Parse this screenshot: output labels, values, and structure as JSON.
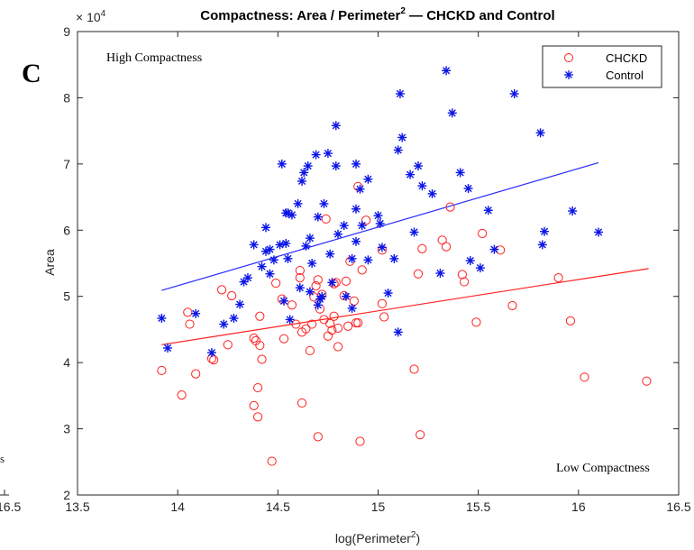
{
  "panel_label": "C",
  "left_fragment": {
    "text": "s",
    "tick": "16.5"
  },
  "chart_data": {
    "type": "scatter",
    "title_main": "Compactness: Area / Perimeter",
    "title_sup": "2",
    "title_tail": " — CHCKD and Control",
    "xlabel_main": "log(Perimeter",
    "xlabel_sup": "2",
    "xlabel_tail": ")",
    "ylabel": "Area",
    "y_exponent_label": "× 10",
    "y_exponent_sup": "4",
    "xlim": [
      13.5,
      16.5
    ],
    "ylim": [
      2,
      9
    ],
    "x_ticks": [
      "13.5",
      "14",
      "14.5",
      "15",
      "15.5",
      "16",
      "16.5"
    ],
    "y_ticks": [
      "2",
      "3",
      "4",
      "5",
      "6",
      "7",
      "8",
      "9"
    ],
    "annotations": {
      "high": "High Compactness",
      "low": "Low Compactness"
    },
    "legend_position": "top-right",
    "grid": false,
    "series": [
      {
        "name": "CHCKD",
        "marker": "circle",
        "color": "#ff2020",
        "points": [
          [
            13.92,
            3.88
          ],
          [
            14.02,
            3.51
          ],
          [
            14.05,
            4.76
          ],
          [
            14.06,
            4.58
          ],
          [
            14.09,
            3.83
          ],
          [
            14.17,
            4.06
          ],
          [
            14.18,
            4.04
          ],
          [
            14.22,
            5.1
          ],
          [
            14.25,
            4.27
          ],
          [
            14.27,
            5.01
          ],
          [
            14.38,
            3.35
          ],
          [
            14.38,
            4.37
          ],
          [
            14.39,
            4.33
          ],
          [
            14.4,
            3.62
          ],
          [
            14.4,
            3.18
          ],
          [
            14.41,
            4.7
          ],
          [
            14.41,
            4.26
          ],
          [
            14.42,
            4.05
          ],
          [
            14.47,
            2.51
          ],
          [
            14.49,
            5.2
          ],
          [
            14.52,
            4.96
          ],
          [
            14.53,
            4.36
          ],
          [
            14.57,
            4.87
          ],
          [
            14.59,
            4.58
          ],
          [
            14.61,
            5.28
          ],
          [
            14.61,
            5.39
          ],
          [
            14.62,
            4.46
          ],
          [
            14.62,
            3.39
          ],
          [
            14.64,
            4.51
          ],
          [
            14.66,
            4.18
          ],
          [
            14.67,
            4.58
          ],
          [
            14.68,
            4.99
          ],
          [
            14.69,
            5.16
          ],
          [
            14.7,
            5.25
          ],
          [
            14.7,
            2.88
          ],
          [
            14.71,
            4.81
          ],
          [
            14.72,
            5.03
          ],
          [
            14.73,
            4.65
          ],
          [
            14.74,
            6.17
          ],
          [
            14.75,
            4.4
          ],
          [
            14.76,
            4.59
          ],
          [
            14.77,
            4.49
          ],
          [
            14.78,
            5.19
          ],
          [
            14.78,
            4.7
          ],
          [
            14.79,
            5.21
          ],
          [
            14.8,
            4.52
          ],
          [
            14.8,
            4.24
          ],
          [
            14.83,
            5.01
          ],
          [
            14.84,
            5.23
          ],
          [
            14.85,
            4.55
          ],
          [
            14.86,
            5.53
          ],
          [
            14.88,
            4.93
          ],
          [
            14.89,
            4.6
          ],
          [
            14.9,
            6.66
          ],
          [
            14.9,
            4.6
          ],
          [
            14.91,
            2.81
          ],
          [
            14.92,
            5.4
          ],
          [
            14.94,
            6.15
          ],
          [
            15.02,
            5.7
          ],
          [
            15.02,
            4.89
          ],
          [
            15.03,
            4.69
          ],
          [
            15.18,
            3.9
          ],
          [
            15.2,
            5.34
          ],
          [
            15.21,
            2.91
          ],
          [
            15.22,
            5.72
          ],
          [
            15.32,
            5.85
          ],
          [
            15.34,
            5.75
          ],
          [
            15.36,
            6.35
          ],
          [
            15.42,
            5.33
          ],
          [
            15.43,
            5.22
          ],
          [
            15.49,
            4.61
          ],
          [
            15.52,
            5.95
          ],
          [
            15.61,
            5.7
          ],
          [
            15.67,
            4.86
          ],
          [
            15.9,
            5.28
          ],
          [
            15.96,
            4.63
          ],
          [
            16.03,
            3.78
          ],
          [
            16.34,
            3.72
          ]
        ]
      },
      {
        "name": "Control",
        "marker": "asterisk",
        "color": "#0a14e6",
        "points": [
          [
            13.92,
            4.67
          ],
          [
            13.95,
            4.22
          ],
          [
            14.09,
            4.74
          ],
          [
            14.17,
            4.15
          ],
          [
            14.23,
            4.58
          ],
          [
            14.28,
            4.67
          ],
          [
            14.31,
            4.88
          ],
          [
            14.33,
            5.22
          ],
          [
            14.35,
            5.28
          ],
          [
            14.38,
            5.78
          ],
          [
            14.42,
            5.45
          ],
          [
            14.44,
            5.68
          ],
          [
            14.44,
            6.04
          ],
          [
            14.46,
            5.71
          ],
          [
            14.46,
            5.34
          ],
          [
            14.48,
            5.55
          ],
          [
            14.51,
            5.78
          ],
          [
            14.52,
            7.0
          ],
          [
            14.53,
            4.93
          ],
          [
            14.54,
            5.8
          ],
          [
            14.54,
            6.26
          ],
          [
            14.55,
            6.26
          ],
          [
            14.55,
            5.57
          ],
          [
            14.56,
            4.65
          ],
          [
            14.57,
            6.23
          ],
          [
            14.6,
            6.4
          ],
          [
            14.61,
            5.13
          ],
          [
            14.62,
            6.74
          ],
          [
            14.63,
            6.87
          ],
          [
            14.64,
            5.76
          ],
          [
            14.65,
            6.97
          ],
          [
            14.66,
            5.88
          ],
          [
            14.66,
            5.07
          ],
          [
            14.67,
            5.5
          ],
          [
            14.69,
            7.14
          ],
          [
            14.7,
            4.87
          ],
          [
            14.7,
            6.2
          ],
          [
            14.71,
            4.96
          ],
          [
            14.72,
            5.0
          ],
          [
            14.73,
            6.4
          ],
          [
            14.75,
            7.16
          ],
          [
            14.76,
            5.64
          ],
          [
            14.77,
            5.21
          ],
          [
            14.79,
            7.58
          ],
          [
            14.79,
            6.97
          ],
          [
            14.8,
            5.94
          ],
          [
            14.83,
            6.07
          ],
          [
            14.84,
            5.0
          ],
          [
            14.87,
            5.57
          ],
          [
            14.87,
            4.82
          ],
          [
            14.89,
            7.0
          ],
          [
            14.89,
            6.32
          ],
          [
            14.89,
            5.83
          ],
          [
            14.91,
            6.62
          ],
          [
            14.92,
            6.07
          ],
          [
            14.95,
            6.77
          ],
          [
            14.95,
            5.55
          ],
          [
            15.0,
            6.22
          ],
          [
            15.01,
            6.1
          ],
          [
            15.02,
            5.74
          ],
          [
            15.05,
            5.05
          ],
          [
            15.08,
            5.57
          ],
          [
            15.1,
            7.21
          ],
          [
            15.1,
            4.46
          ],
          [
            15.11,
            8.06
          ],
          [
            15.12,
            7.4
          ],
          [
            15.16,
            6.84
          ],
          [
            15.18,
            5.97
          ],
          [
            15.2,
            6.97
          ],
          [
            15.22,
            6.67
          ],
          [
            15.27,
            6.55
          ],
          [
            15.31,
            5.35
          ],
          [
            15.34,
            8.41
          ],
          [
            15.37,
            7.77
          ],
          [
            15.41,
            6.87
          ],
          [
            15.45,
            6.63
          ],
          [
            15.46,
            5.54
          ],
          [
            15.51,
            5.43
          ],
          [
            15.55,
            6.3
          ],
          [
            15.58,
            5.71
          ],
          [
            15.68,
            8.06
          ],
          [
            15.81,
            7.47
          ],
          [
            15.82,
            5.78
          ],
          [
            15.83,
            5.98
          ],
          [
            15.97,
            6.29
          ],
          [
            16.1,
            5.97
          ]
        ]
      }
    ],
    "fit_lines": [
      {
        "series": "CHCKD",
        "color": "#ff2020",
        "from": [
          13.92,
          4.27
        ],
        "to": [
          16.35,
          5.42
        ]
      },
      {
        "series": "Control",
        "color": "#2a2aff",
        "from": [
          13.92,
          5.09
        ],
        "to": [
          16.1,
          7.02
        ]
      }
    ]
  }
}
